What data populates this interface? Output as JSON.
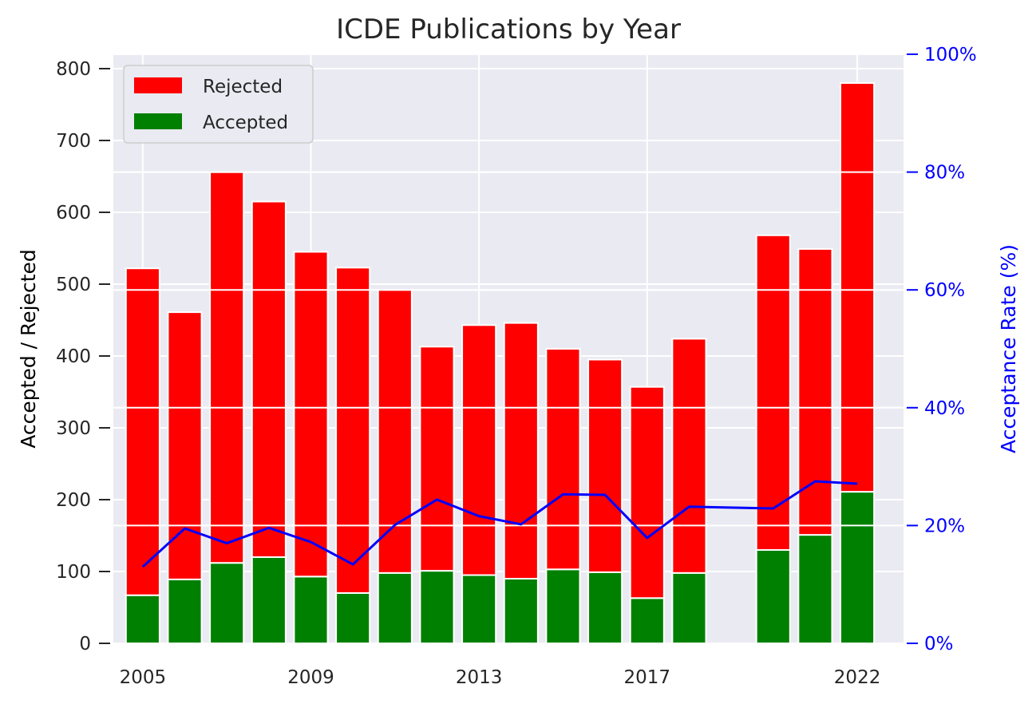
{
  "chart_data": {
    "type": "bar",
    "stacked": true,
    "title": "ICDE Publications by Year",
    "ylabel": "Accepted / Rejected",
    "ylabel_right": "Acceptance Rate (%)",
    "ylim": [
      0,
      820
    ],
    "ylim_right": [
      0,
      100
    ],
    "yticks": [
      0,
      100,
      200,
      300,
      400,
      500,
      600,
      700,
      800
    ],
    "yticks_right": [
      "0%",
      "20%",
      "40%",
      "60%",
      "80%",
      "100%"
    ],
    "xlim": [
      2004.3,
      2023.1
    ],
    "xticks": [
      2005,
      2009,
      2013,
      2017,
      2022
    ],
    "grid": true,
    "legend_position": "top-left",
    "colors": {
      "rejected": "#ff0000",
      "accepted": "#008000",
      "rate": "#0000ff",
      "background": "#eaeaf2",
      "grid": "#ffffff",
      "right_axis": "#0000ff"
    },
    "x": [
      2005,
      2006,
      2007,
      2008,
      2009,
      2010,
      2011,
      2012,
      2013,
      2014,
      2015,
      2016,
      2017,
      2018,
      2020,
      2021,
      2022
    ],
    "series": [
      {
        "name": "Accepted",
        "values": [
          67,
          89,
          112,
          120,
          93,
          70,
          98,
          101,
          95,
          90,
          103,
          99,
          63,
          98,
          130,
          151,
          211
        ]
      },
      {
        "name": "Rejected",
        "values": [
          455,
          372,
          544,
          495,
          452,
          453,
          394,
          312,
          348,
          356,
          307,
          296,
          294,
          326,
          438,
          398,
          569
        ]
      }
    ],
    "rate_series": {
      "name": "Acceptance Rate",
      "values": [
        13.0,
        19.5,
        17.0,
        19.6,
        17.2,
        13.4,
        20.1,
        24.4,
        21.6,
        20.2,
        25.3,
        25.2,
        17.9,
        23.2,
        22.9,
        27.5,
        27.1
      ]
    }
  }
}
